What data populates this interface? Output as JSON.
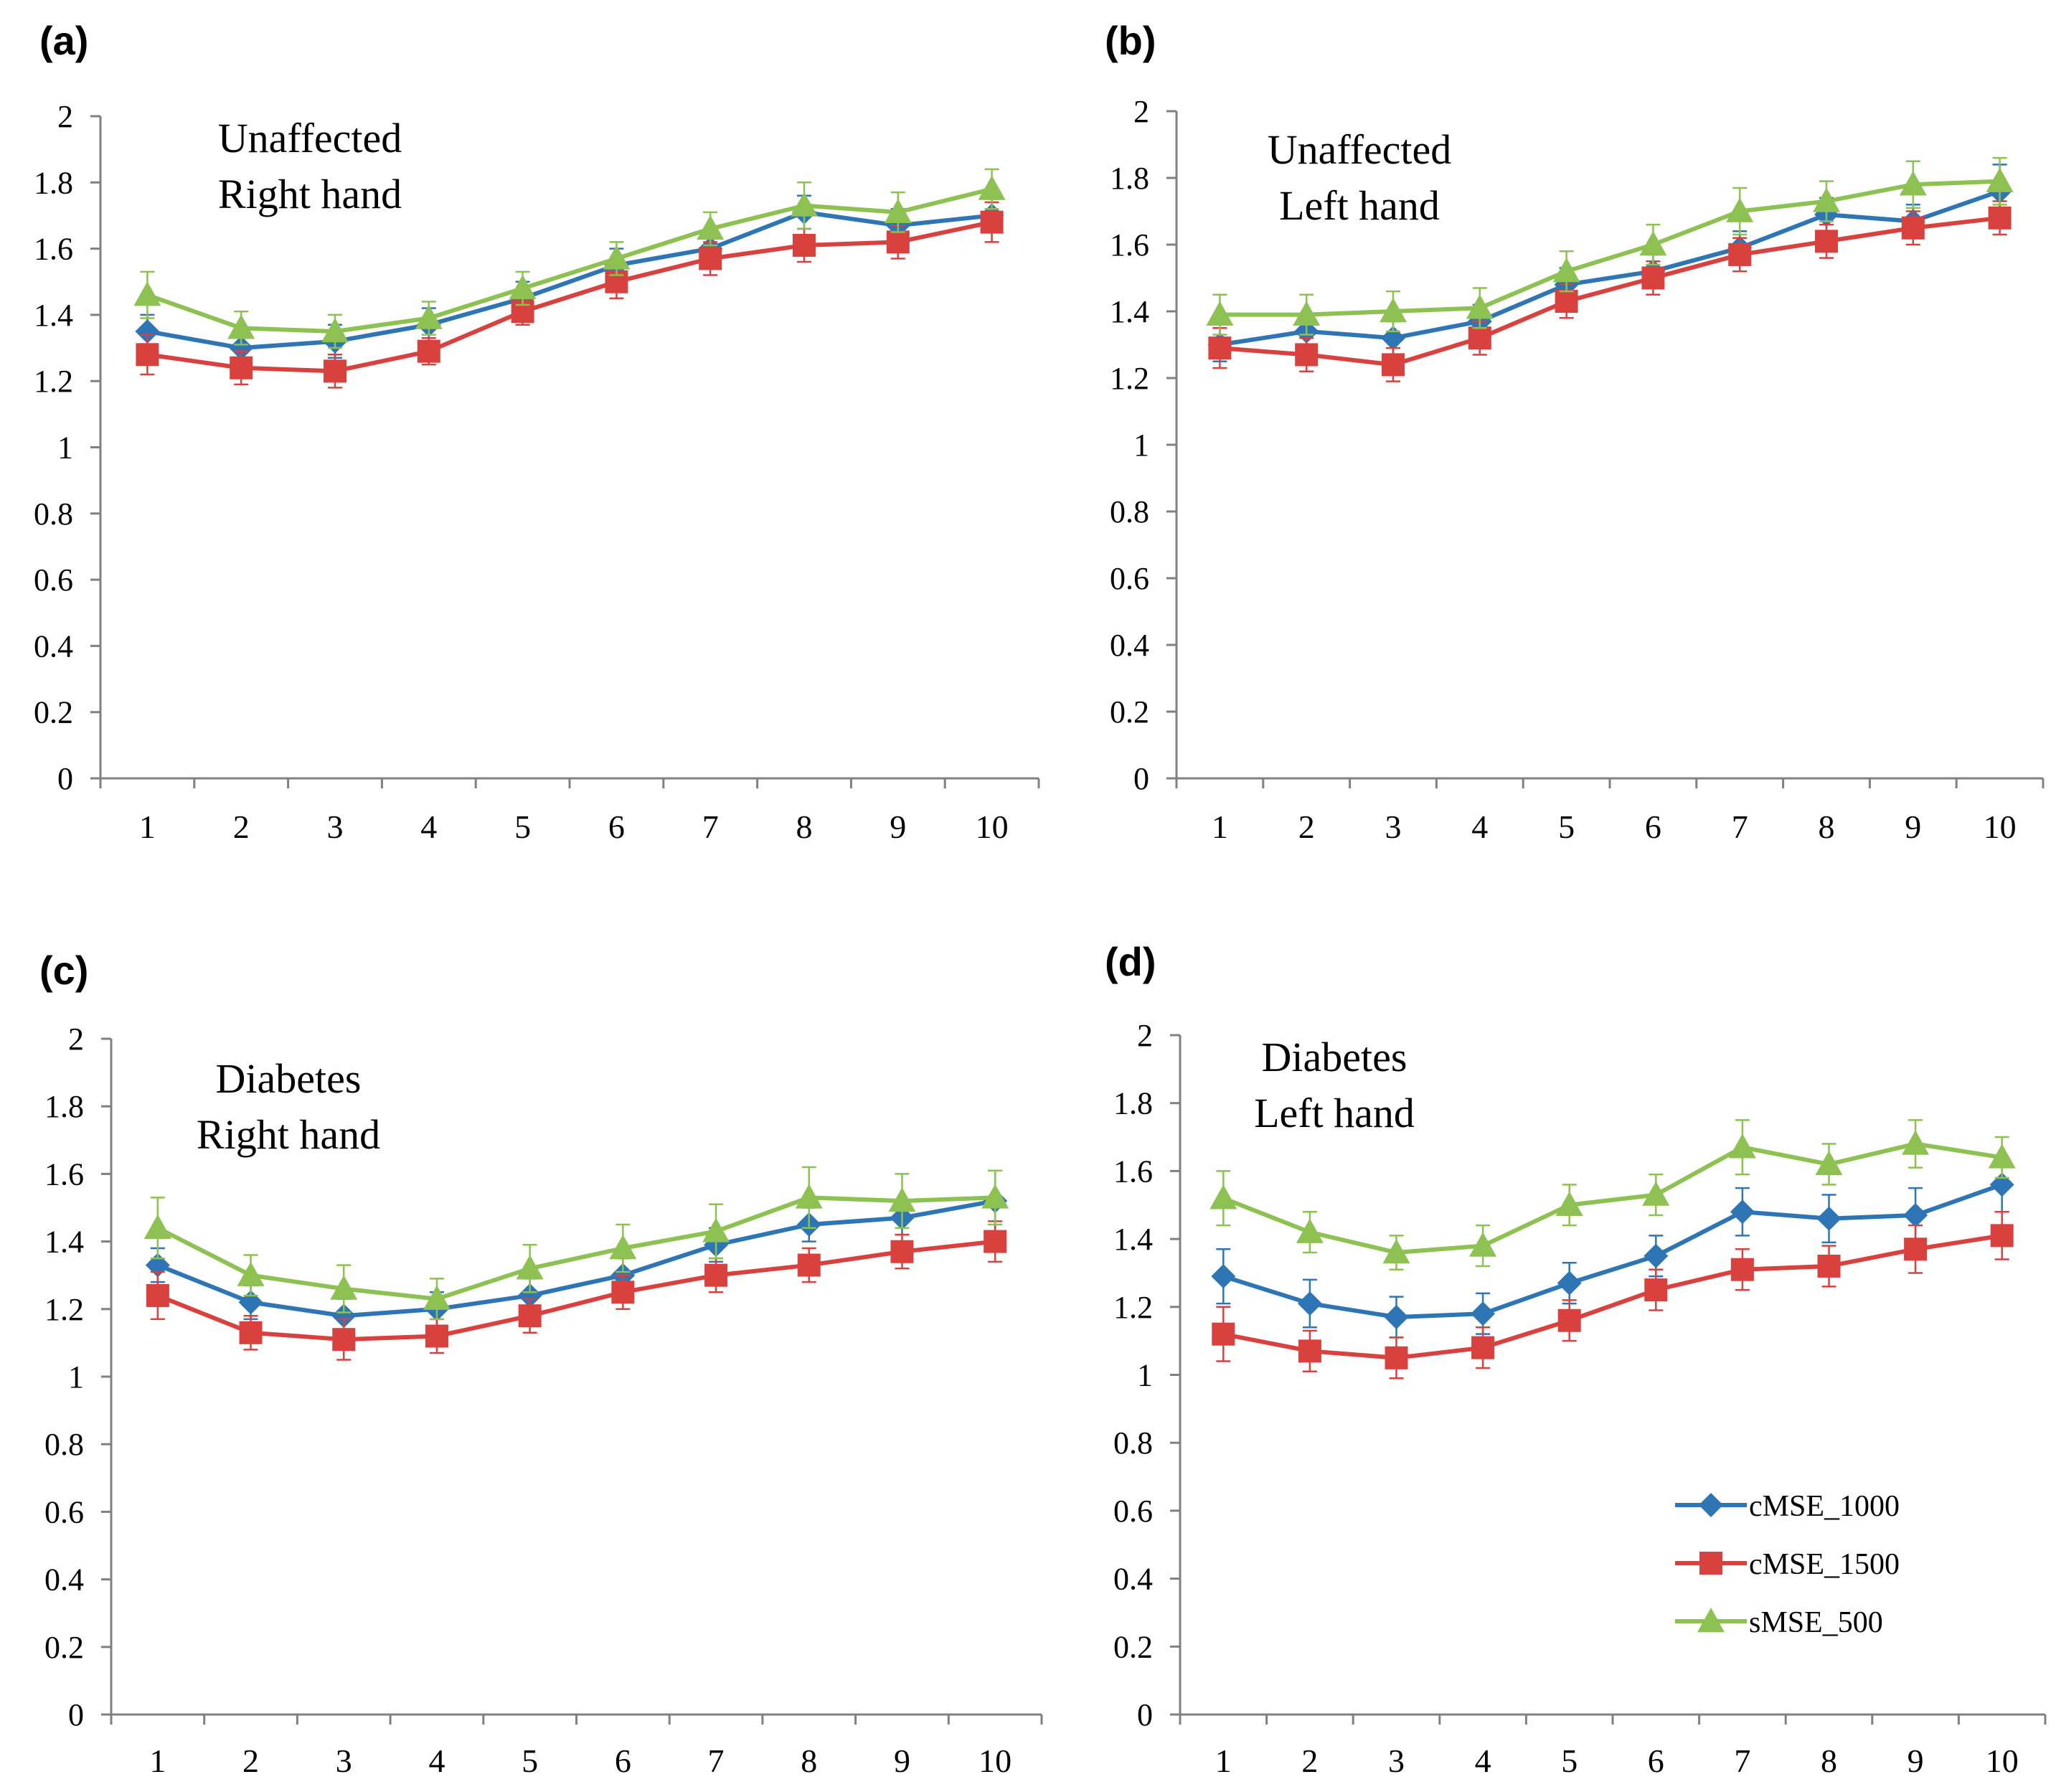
{
  "figure": {
    "colors": {
      "cMSE_1000": "#2E75B6",
      "cMSE_1500": "#D9413F",
      "sMSE_500": "#8DC151",
      "axis": "#808080",
      "text": "#000000"
    }
  },
  "chart_data": [
    {
      "type": "line",
      "panel_label": "(a)",
      "annotation_lines": [
        "Unaffected",
        "Right hand"
      ],
      "x": [
        1,
        2,
        3,
        4,
        5,
        6,
        7,
        8,
        9,
        10
      ],
      "x_tick_labels": [
        "1",
        "2",
        "3",
        "4",
        "5",
        "6",
        "7",
        "8",
        "9",
        "10"
      ],
      "y_tick_labels": [
        "0",
        "0.2",
        "0.4",
        "0.6",
        "0.8",
        "1",
        "1.2",
        "1.4",
        "1.6",
        "1.8",
        "2"
      ],
      "ylim": [
        0,
        2
      ],
      "grid": false,
      "series": [
        {
          "name": "cMSE_1000",
          "marker": "diamond",
          "values": [
            1.35,
            1.3,
            1.32,
            1.37,
            1.45,
            1.55,
            1.6,
            1.71,
            1.67,
            1.7
          ],
          "errors": [
            0.05,
            0.05,
            0.05,
            0.05,
            0.05,
            0.05,
            0.05,
            0.05,
            0.05,
            0.05
          ]
        },
        {
          "name": "cMSE_1500",
          "marker": "square",
          "values": [
            1.28,
            1.24,
            1.23,
            1.29,
            1.41,
            1.5,
            1.57,
            1.61,
            1.62,
            1.68
          ],
          "errors": [
            0.06,
            0.05,
            0.05,
            0.04,
            0.04,
            0.05,
            0.05,
            0.05,
            0.05,
            0.06
          ]
        },
        {
          "name": "sMSE_500",
          "marker": "triangle",
          "values": [
            1.46,
            1.36,
            1.35,
            1.39,
            1.48,
            1.57,
            1.66,
            1.73,
            1.71,
            1.78
          ],
          "errors": [
            0.07,
            0.05,
            0.05,
            0.05,
            0.05,
            0.05,
            0.05,
            0.07,
            0.06,
            0.06
          ]
        }
      ]
    },
    {
      "type": "line",
      "panel_label": "(b)",
      "annotation_lines": [
        "Unaffected",
        "Left hand"
      ],
      "x": [
        1,
        2,
        3,
        4,
        5,
        6,
        7,
        8,
        9,
        10
      ],
      "x_tick_labels": [
        "1",
        "2",
        "3",
        "4",
        "5",
        "6",
        "7",
        "8",
        "9",
        "10"
      ],
      "y_tick_labels": [
        "0",
        "0.2",
        "0.4",
        "0.6",
        "0.8",
        "1",
        "1.2",
        "1.4",
        "1.6",
        "1.8",
        "2"
      ],
      "ylim": [
        0,
        2
      ],
      "grid": false,
      "series": [
        {
          "name": "cMSE_1000",
          "marker": "diamond",
          "values": [
            1.3,
            1.34,
            1.32,
            1.37,
            1.48,
            1.52,
            1.59,
            1.69,
            1.67,
            1.76
          ],
          "errors": [
            0.05,
            0.05,
            0.05,
            0.05,
            0.05,
            0.05,
            0.05,
            0.05,
            0.05,
            0.08
          ]
        },
        {
          "name": "cMSE_1500",
          "marker": "square",
          "values": [
            1.29,
            1.27,
            1.24,
            1.32,
            1.43,
            1.5,
            1.57,
            1.61,
            1.65,
            1.68
          ],
          "errors": [
            0.06,
            0.05,
            0.05,
            0.05,
            0.05,
            0.05,
            0.05,
            0.05,
            0.05,
            0.05
          ]
        },
        {
          "name": "sMSE_500",
          "marker": "triangle",
          "values": [
            1.39,
            1.39,
            1.4,
            1.41,
            1.52,
            1.6,
            1.7,
            1.73,
            1.78,
            1.79
          ],
          "errors": [
            0.06,
            0.06,
            0.06,
            0.06,
            0.06,
            0.06,
            0.07,
            0.06,
            0.07,
            0.07
          ]
        }
      ]
    },
    {
      "type": "line",
      "panel_label": "(c)",
      "annotation_lines": [
        "Diabetes",
        "Right hand"
      ],
      "x": [
        1,
        2,
        3,
        4,
        5,
        6,
        7,
        8,
        9,
        10
      ],
      "x_tick_labels": [
        "1",
        "2",
        "3",
        "4",
        "5",
        "6",
        "7",
        "8",
        "9",
        "10"
      ],
      "y_tick_labels": [
        "0",
        "0.2",
        "0.4",
        "0.6",
        "0.8",
        "1",
        "1.2",
        "1.4",
        "1.6",
        "1.8",
        "2"
      ],
      "ylim": [
        0,
        2
      ],
      "grid": false,
      "series": [
        {
          "name": "cMSE_1000",
          "marker": "diamond",
          "values": [
            1.33,
            1.22,
            1.18,
            1.2,
            1.24,
            1.3,
            1.39,
            1.45,
            1.47,
            1.52
          ],
          "errors": [
            0.05,
            0.05,
            0.05,
            0.05,
            0.05,
            0.05,
            0.05,
            0.05,
            0.05,
            0.09
          ]
        },
        {
          "name": "cMSE_1500",
          "marker": "square",
          "values": [
            1.24,
            1.13,
            1.11,
            1.12,
            1.18,
            1.25,
            1.3,
            1.33,
            1.37,
            1.4
          ],
          "errors": [
            0.07,
            0.05,
            0.06,
            0.05,
            0.05,
            0.05,
            0.05,
            0.05,
            0.05,
            0.06
          ]
        },
        {
          "name": "sMSE_500",
          "marker": "triangle",
          "values": [
            1.44,
            1.3,
            1.26,
            1.23,
            1.32,
            1.38,
            1.43,
            1.53,
            1.52,
            1.53
          ],
          "errors": [
            0.09,
            0.06,
            0.07,
            0.06,
            0.07,
            0.07,
            0.08,
            0.09,
            0.08,
            0.08
          ]
        }
      ]
    },
    {
      "type": "line",
      "panel_label": "(d)",
      "annotation_lines": [
        "Diabetes",
        "Left hand"
      ],
      "x": [
        1,
        2,
        3,
        4,
        5,
        6,
        7,
        8,
        9,
        10
      ],
      "x_tick_labels": [
        "1",
        "2",
        "3",
        "4",
        "5",
        "6",
        "7",
        "8",
        "9",
        "10"
      ],
      "y_tick_labels": [
        "0",
        "0.2",
        "0.4",
        "0.6",
        "0.8",
        "1",
        "1.2",
        "1.4",
        "1.6",
        "1.8",
        "2"
      ],
      "ylim": [
        0,
        2
      ],
      "grid": false,
      "legend": {
        "position": "bottom-right",
        "entries": [
          "cMSE_1000",
          "cMSE_1500",
          "sMSE_500"
        ]
      },
      "series": [
        {
          "name": "cMSE_1000",
          "marker": "diamond",
          "values": [
            1.29,
            1.21,
            1.17,
            1.18,
            1.27,
            1.35,
            1.48,
            1.46,
            1.47,
            1.56
          ],
          "errors": [
            0.08,
            0.07,
            0.06,
            0.06,
            0.06,
            0.06,
            0.07,
            0.07,
            0.08,
            0.08
          ]
        },
        {
          "name": "cMSE_1500",
          "marker": "square",
          "values": [
            1.12,
            1.07,
            1.05,
            1.08,
            1.16,
            1.25,
            1.31,
            1.32,
            1.37,
            1.41
          ],
          "errors": [
            0.08,
            0.06,
            0.06,
            0.06,
            0.06,
            0.06,
            0.06,
            0.06,
            0.07,
            0.07
          ]
        },
        {
          "name": "sMSE_500",
          "marker": "triangle",
          "values": [
            1.52,
            1.42,
            1.36,
            1.38,
            1.5,
            1.53,
            1.67,
            1.62,
            1.68,
            1.64
          ],
          "errors": [
            0.08,
            0.06,
            0.05,
            0.06,
            0.06,
            0.06,
            0.08,
            0.06,
            0.07,
            0.06
          ]
        }
      ]
    }
  ]
}
